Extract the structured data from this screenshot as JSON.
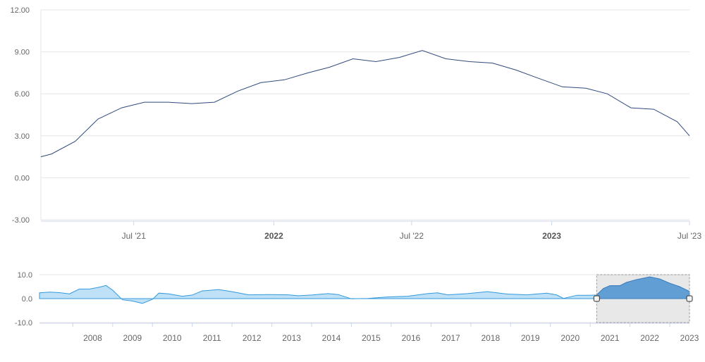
{
  "chart_data": [
    {
      "type": "line",
      "title": "",
      "xlabel": "",
      "ylabel": "",
      "ylim": [
        -3,
        12
      ],
      "y_ticks": [
        "12.00",
        "9.00",
        "6.00",
        "3.00",
        "0.00",
        "-3.00"
      ],
      "x_ticks": [
        {
          "label": "Jul '21",
          "date": "2021-07-01",
          "bold": false
        },
        {
          "label": "2022",
          "date": "2022-01-01",
          "bold": true
        },
        {
          "label": "Jul '22",
          "date": "2022-07-01",
          "bold": false
        },
        {
          "label": "2023",
          "date": "2023-01-01",
          "bold": true
        },
        {
          "label": "Jul '23",
          "date": "2023-07-01",
          "bold": false
        }
      ],
      "x_range": [
        "2021-03-01",
        "2023-07-01"
      ],
      "grid": true,
      "series": [
        {
          "color": "#2f4b7c",
          "points": [
            [
              "2021-03-01",
              1.5
            ],
            [
              "2021-03-15",
              1.7
            ],
            [
              "2021-04-15",
              2.6
            ],
            [
              "2021-05-15",
              4.2
            ],
            [
              "2021-06-15",
              5.0
            ],
            [
              "2021-07-15",
              5.4
            ],
            [
              "2021-08-15",
              5.4
            ],
            [
              "2021-09-15",
              5.3
            ],
            [
              "2021-10-15",
              5.4
            ],
            [
              "2021-11-15",
              6.2
            ],
            [
              "2021-12-15",
              6.8
            ],
            [
              "2022-01-15",
              7.0
            ],
            [
              "2022-02-15",
              7.5
            ],
            [
              "2022-03-15",
              7.9
            ],
            [
              "2022-04-15",
              8.5
            ],
            [
              "2022-05-15",
              8.3
            ],
            [
              "2022-06-15",
              8.6
            ],
            [
              "2022-07-15",
              9.1
            ],
            [
              "2022-08-15",
              8.5
            ],
            [
              "2022-09-15",
              8.3
            ],
            [
              "2022-10-15",
              8.2
            ],
            [
              "2022-11-15",
              7.7
            ],
            [
              "2022-12-15",
              7.1
            ],
            [
              "2023-01-15",
              6.5
            ],
            [
              "2023-02-15",
              6.4
            ],
            [
              "2023-03-15",
              6.0
            ],
            [
              "2023-04-15",
              5.0
            ],
            [
              "2023-05-15",
              4.9
            ],
            [
              "2023-06-15",
              4.0
            ],
            [
              "2023-07-01",
              3.0
            ]
          ]
        }
      ]
    },
    {
      "type": "area",
      "title": "",
      "ylim": [
        -10,
        10
      ],
      "y_ticks": [
        "10.0",
        "0.0",
        "-10.0"
      ],
      "x_ticks": [
        "2008",
        "2009",
        "2010",
        "2011",
        "2012",
        "2013",
        "2014",
        "2015",
        "2016",
        "2017",
        "2018",
        "2019",
        "2020",
        "2021",
        "2022",
        "2023"
      ],
      "x_range": [
        "2007-03-01",
        "2023-07-01"
      ],
      "selection": [
        "2021-03-01",
        "2023-07-01"
      ],
      "series": [
        {
          "points": [
            [
              "2007-03-01",
              2.4
            ],
            [
              "2007-06-01",
              2.7
            ],
            [
              "2007-09-01",
              2.5
            ],
            [
              "2007-12-01",
              2.0
            ],
            [
              "2008-03-01",
              4.0
            ],
            [
              "2008-06-01",
              4.0
            ],
            [
              "2008-09-01",
              4.8
            ],
            [
              "2008-11-01",
              5.5
            ],
            [
              "2009-01-01",
              3.5
            ],
            [
              "2009-04-01",
              -0.5
            ],
            [
              "2009-07-01",
              -1.0
            ],
            [
              "2009-10-01",
              -2.0
            ],
            [
              "2010-01-01",
              -0.3
            ],
            [
              "2010-03-01",
              2.3
            ],
            [
              "2010-06-01",
              2.0
            ],
            [
              "2010-10-01",
              1.0
            ],
            [
              "2011-01-01",
              1.5
            ],
            [
              "2011-04-01",
              3.2
            ],
            [
              "2011-09-01",
              3.8
            ],
            [
              "2012-01-01",
              2.9
            ],
            [
              "2012-06-01",
              1.6
            ],
            [
              "2012-12-01",
              1.7
            ],
            [
              "2013-06-01",
              1.6
            ],
            [
              "2013-09-01",
              1.2
            ],
            [
              "2014-01-01",
              1.5
            ],
            [
              "2014-06-01",
              2.1
            ],
            [
              "2014-09-01",
              1.7
            ],
            [
              "2015-01-01",
              -0.1
            ],
            [
              "2015-06-01",
              0.1
            ],
            [
              "2015-12-01",
              0.7
            ],
            [
              "2016-06-01",
              1.0
            ],
            [
              "2016-12-01",
              2.1
            ],
            [
              "2017-03-01",
              2.4
            ],
            [
              "2017-06-01",
              1.6
            ],
            [
              "2017-12-01",
              2.1
            ],
            [
              "2018-06-01",
              2.9
            ],
            [
              "2018-12-01",
              1.9
            ],
            [
              "2019-06-01",
              1.6
            ],
            [
              "2019-12-01",
              2.3
            ],
            [
              "2020-03-01",
              1.5
            ],
            [
              "2020-05-01",
              0.1
            ],
            [
              "2020-09-01",
              1.4
            ],
            [
              "2021-01-01",
              1.4
            ],
            [
              "2021-03-01",
              1.5
            ],
            [
              "2021-05-01",
              4.2
            ],
            [
              "2021-07-01",
              5.4
            ],
            [
              "2021-10-01",
              5.4
            ],
            [
              "2021-12-01",
              6.8
            ],
            [
              "2022-03-01",
              7.9
            ],
            [
              "2022-07-01",
              9.1
            ],
            [
              "2022-10-01",
              8.2
            ],
            [
              "2023-01-01",
              6.4
            ],
            [
              "2023-04-01",
              5.0
            ],
            [
              "2023-07-01",
              3.0
            ]
          ]
        }
      ]
    }
  ]
}
